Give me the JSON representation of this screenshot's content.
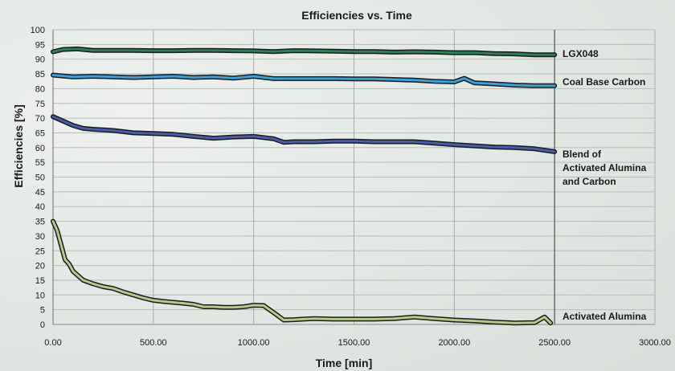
{
  "chart_data": {
    "type": "line",
    "title": "Efficiencies vs. Time",
    "xlabel": "Time [min]",
    "ylabel": "Efficiencies [%]",
    "xlim": [
      0,
      3000
    ],
    "ylim": [
      0,
      100
    ],
    "x_ticks": [
      "0.00",
      "500.00",
      "1000.00",
      "1500.00",
      "2000.00",
      "2500.00",
      "3000.00"
    ],
    "x_tick_values": [
      0,
      500,
      1000,
      1500,
      2000,
      2500,
      3000
    ],
    "y_ticks": [
      "0",
      "5",
      "10",
      "15",
      "20",
      "25",
      "30",
      "35",
      "40",
      "45",
      "50",
      "55",
      "60",
      "65",
      "70",
      "75",
      "80",
      "85",
      "90",
      "95",
      "100"
    ],
    "y_tick_values": [
      0,
      5,
      10,
      15,
      20,
      25,
      30,
      35,
      40,
      45,
      50,
      55,
      60,
      65,
      70,
      75,
      80,
      85,
      90,
      95,
      100
    ],
    "grid": true,
    "series": [
      {
        "name": "LGX048",
        "color": "#2e7d55",
        "label_lines": [
          "LGX048"
        ],
        "x": [
          0,
          50,
          120,
          200,
          300,
          400,
          500,
          600,
          700,
          800,
          900,
          1000,
          1100,
          1200,
          1300,
          1400,
          1500,
          1600,
          1700,
          1800,
          1900,
          2000,
          2100,
          2200,
          2300,
          2400,
          2500
        ],
        "y": [
          92.5,
          93.3,
          93.5,
          93.0,
          93.0,
          93.0,
          92.9,
          92.9,
          93.0,
          93.0,
          92.9,
          92.8,
          92.6,
          92.9,
          92.8,
          92.7,
          92.6,
          92.6,
          92.4,
          92.5,
          92.4,
          92.2,
          92.2,
          91.9,
          91.8,
          91.5,
          91.5
        ]
      },
      {
        "name": "Coal Base Carbon",
        "color": "#3aa0d8",
        "label_lines": [
          "Coal Base Carbon"
        ],
        "x": [
          0,
          50,
          100,
          200,
          300,
          400,
          500,
          600,
          700,
          800,
          900,
          1000,
          1100,
          1200,
          1300,
          1400,
          1500,
          1600,
          1700,
          1800,
          1900,
          2000,
          2050,
          2100,
          2200,
          2300,
          2400,
          2500
        ],
        "y": [
          84.6,
          84.3,
          84.0,
          84.2,
          84.0,
          83.8,
          84.0,
          84.2,
          83.8,
          84.0,
          83.6,
          84.2,
          83.4,
          83.4,
          83.4,
          83.4,
          83.3,
          83.3,
          83.1,
          82.9,
          82.5,
          82.3,
          83.5,
          82.0,
          81.6,
          81.2,
          81.0,
          81.0
        ]
      },
      {
        "name": "Blend of Activated Alumina and Carbon",
        "color": "#4a5ca8",
        "label_lines": [
          "Blend of",
          "Activated Alumina",
          "and Carbon"
        ],
        "x": [
          0,
          50,
          100,
          150,
          200,
          300,
          400,
          500,
          600,
          700,
          800,
          900,
          1000,
          1100,
          1150,
          1200,
          1300,
          1400,
          1500,
          1600,
          1700,
          1800,
          1900,
          2000,
          2100,
          2200,
          2300,
          2400,
          2500
        ],
        "y": [
          70.5,
          69.0,
          67.5,
          66.5,
          66.2,
          65.8,
          65.0,
          64.8,
          64.5,
          63.8,
          63.2,
          63.6,
          63.8,
          63.0,
          61.8,
          62.0,
          62.0,
          62.2,
          62.2,
          62.0,
          62.0,
          62.0,
          61.5,
          61.0,
          60.6,
          60.2,
          60.0,
          59.6,
          58.6
        ]
      },
      {
        "name": "Activated Alumina",
        "color": "#b9c98a",
        "label_lines": [
          "Activated Alumina"
        ],
        "x": [
          0,
          20,
          40,
          60,
          80,
          100,
          150,
          200,
          250,
          300,
          350,
          400,
          450,
          500,
          550,
          600,
          650,
          700,
          750,
          800,
          850,
          900,
          950,
          1000,
          1050,
          1100,
          1150,
          1200,
          1300,
          1400,
          1500,
          1600,
          1700,
          1800,
          1900,
          2000,
          2100,
          2200,
          2300,
          2400,
          2450,
          2480
        ],
        "y": [
          35.0,
          32.0,
          27.0,
          22.0,
          20.5,
          18.0,
          15.0,
          13.8,
          12.8,
          12.2,
          11.0,
          10.0,
          9.0,
          8.2,
          7.8,
          7.5,
          7.2,
          6.8,
          6.0,
          6.0,
          5.8,
          5.8,
          6.0,
          6.5,
          6.4,
          4.0,
          1.5,
          1.6,
          2.0,
          1.8,
          1.8,
          1.8,
          2.0,
          2.5,
          2.0,
          1.5,
          1.2,
          0.8,
          0.5,
          0.6,
          2.5,
          0.5
        ]
      }
    ]
  }
}
